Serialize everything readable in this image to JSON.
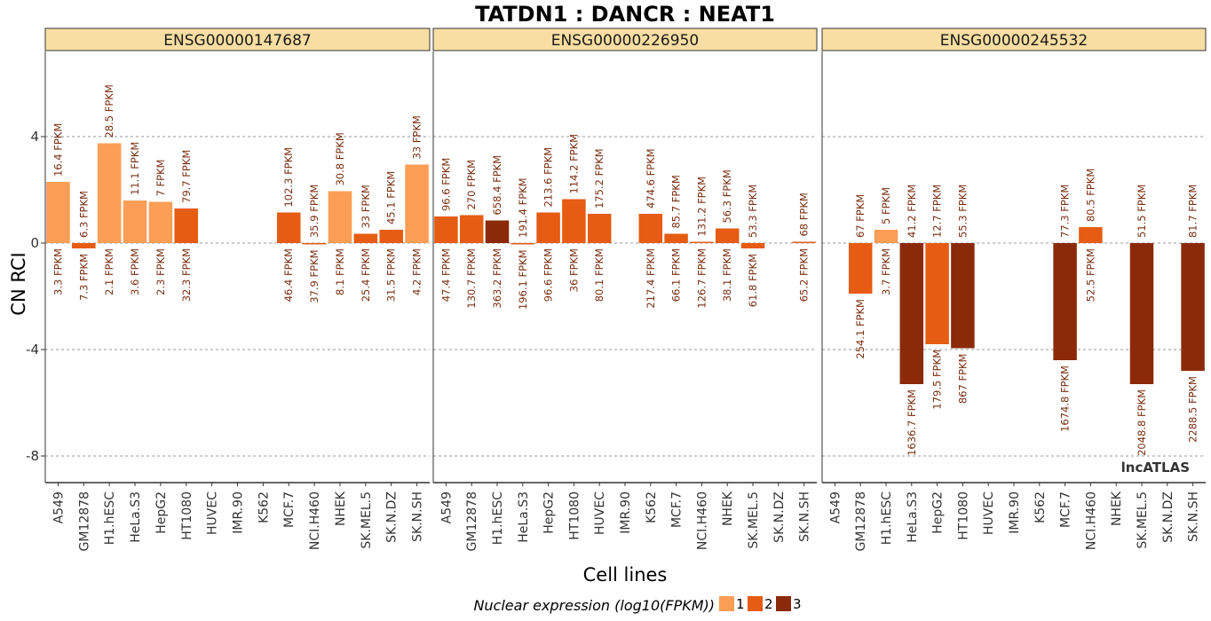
{
  "chart_data": {
    "type": "bar",
    "title": "TATDN1 : DANCR : NEAT1",
    "xlabel": "Cell lines",
    "ylabel": "CN RCI",
    "ylim": [
      -9,
      7.2
    ],
    "yticks": [
      -8,
      -4,
      0,
      4
    ],
    "ytick_labels": [
      "-8",
      "-4",
      "0",
      "4"
    ],
    "grid": "dashed-horizontal",
    "categories": [
      "A549",
      "GM12878",
      "H1.hESC",
      "HeLa.S3",
      "HepG2",
      "HT1080",
      "HUVEC",
      "IMR.90",
      "K562",
      "MCF.7",
      "NCI.H460",
      "NHEK",
      "SK.MEL.5",
      "SK.N.DZ",
      "SK.N.SH"
    ],
    "legend": {
      "title": "Nuclear expression (log10(FPKM))",
      "placement": "bottom",
      "levels": [
        {
          "label": "1",
          "color": "#fd9e56"
        },
        {
          "label": "2",
          "color": "#e65c12"
        },
        {
          "label": "3",
          "color": "#8b2a08"
        }
      ]
    },
    "watermark": "lncATLAS",
    "panels": [
      {
        "name": "ENSG00000147687",
        "values": [
          2.3,
          -0.2,
          3.75,
          1.6,
          1.55,
          1.3,
          null,
          null,
          null,
          1.15,
          -0.05,
          1.95,
          0.35,
          0.5,
          2.95
        ],
        "bar_levels": [
          1,
          2,
          1,
          1,
          1,
          2,
          null,
          null,
          null,
          2,
          2,
          1,
          2,
          2,
          1
        ],
        "top_labels": [
          "16.4 FPKM",
          "6.3 FPKM",
          "28.5 FPKM",
          "11.1 FPKM",
          "7 FPKM",
          "79.7 FPKM",
          "",
          "",
          "",
          "102.3 FPKM",
          "35.9 FPKM",
          "30.8 FPKM",
          "33 FPKM",
          "45.1 FPKM",
          "33 FPKM"
        ],
        "bottom_labels": [
          "3.3 FPKM",
          "7.3 FPKM",
          "2.1 FPKM",
          "3.6 FPKM",
          "2.3 FPKM",
          "32.3 FPKM",
          "",
          "",
          "",
          "46.4 FPKM",
          "37.9 FPKM",
          "8.1 FPKM",
          "25.4 FPKM",
          "31.5 FPKM",
          "4.2 FPKM"
        ]
      },
      {
        "name": "ENSG00000226950",
        "values": [
          1.0,
          1.05,
          0.85,
          -0.05,
          1.15,
          1.65,
          1.1,
          null,
          1.1,
          0.35,
          0.05,
          0.55,
          -0.2,
          null,
          0.05
        ],
        "bar_levels": [
          2,
          2,
          3,
          2,
          2,
          2,
          2,
          null,
          2,
          2,
          2,
          2,
          2,
          null,
          2
        ],
        "top_labels": [
          "96.6 FPKM",
          "270 FPKM",
          "658.4 FPKM",
          "191.4 FPKM",
          "213.6 FPKM",
          "114.2 FPKM",
          "175.2 FPKM",
          "",
          "474.6 FPKM",
          "85.7 FPKM",
          "131.2 FPKM",
          "56.3 FPKM",
          "53.3 FPKM",
          "",
          "68 FPKM"
        ],
        "bottom_labels": [
          "47.4 FPKM",
          "130.7 FPKM",
          "363.2 FPKM",
          "196.1 FPKM",
          "96.6 FPKM",
          "36 FPKM",
          "80.1 FPKM",
          "",
          "217.4 FPKM",
          "66.1 FPKM",
          "126.7 FPKM",
          "38.1 FPKM",
          "61.8 FPKM",
          "",
          "65.2 FPKM"
        ]
      },
      {
        "name": "ENSG00000245532",
        "values": [
          null,
          -1.9,
          0.5,
          -5.3,
          -3.8,
          -3.95,
          null,
          null,
          null,
          -4.4,
          0.6,
          null,
          -5.3,
          null,
          -4.8
        ],
        "bar_levels": [
          null,
          2,
          1,
          3,
          2,
          3,
          null,
          null,
          null,
          3,
          2,
          null,
          3,
          null,
          3
        ],
        "top_labels": [
          "",
          "67 FPKM",
          "5 FPKM",
          "41.2 FPKM",
          "12.7 FPKM",
          "55.3 FPKM",
          "",
          "",
          "",
          "77.3 FPKM",
          "80.5 FPKM",
          "",
          "51.5 FPKM",
          "",
          "81.7 FPKM"
        ],
        "bottom_labels": [
          "",
          "254.1 FPKM",
          "3.7 FPKM",
          "1636.7 FPKM",
          "179.5 FPKM",
          "867 FPKM",
          "",
          "",
          "",
          "1674.8 FPKM",
          "52.5 FPKM",
          "",
          "2048.8 FPKM",
          "",
          "2288.5 FPKM"
        ]
      }
    ]
  }
}
